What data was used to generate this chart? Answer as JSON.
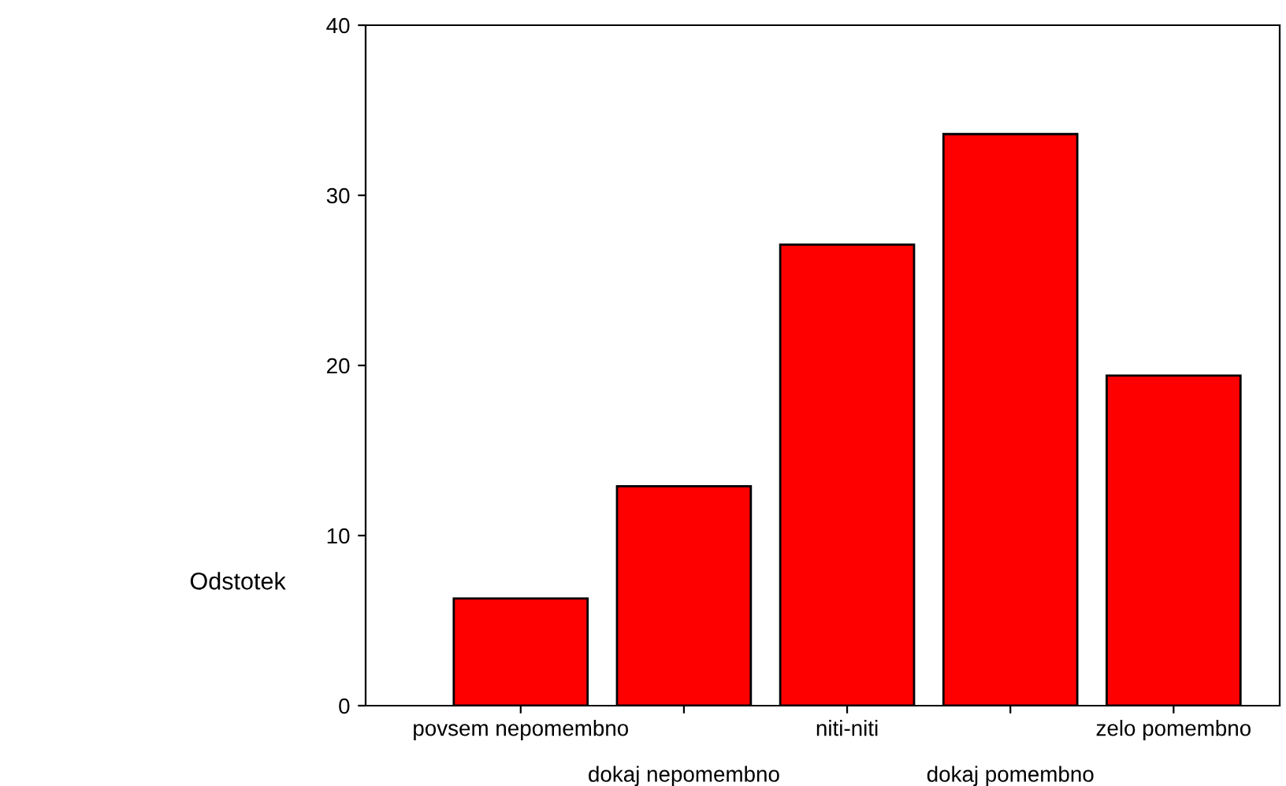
{
  "chart_data": {
    "type": "bar",
    "ylabel": "Odstotek",
    "categories": [
      "povsem nepomembno",
      "dokaj nepomembno",
      "niti-niti",
      "dokaj pomembno",
      "zelo pomembno"
    ],
    "values": [
      6.3,
      12.9,
      27.1,
      33.6,
      19.4
    ],
    "color": "#ff0000",
    "ylim": [
      0,
      40
    ],
    "yticks": [
      0,
      10,
      20,
      30,
      40
    ],
    "grid": false
  }
}
